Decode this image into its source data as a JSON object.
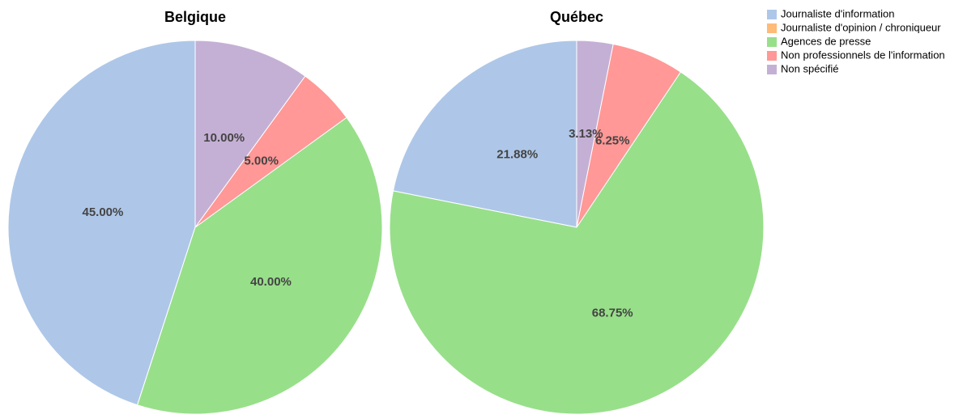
{
  "chart_data": [
    {
      "type": "pie",
      "title": "Belgique",
      "categories": [
        "Journaliste d'information",
        "Journaliste d'opinion / chroniqueur",
        "Agences de presse",
        "Non professionnels de l'information",
        "Non spécifié"
      ],
      "colors": [
        "#aec7e8",
        "#ffbb78",
        "#98df8a",
        "#ff9896",
        "#c5b0d5"
      ],
      "values": [
        45,
        0,
        40,
        5,
        10
      ],
      "value_labels": [
        "45.00%",
        null,
        "40.00%",
        "5.00%",
        "10.00%"
      ]
    },
    {
      "type": "pie",
      "title": "Québec",
      "values": [
        21.88,
        0,
        68.75,
        6.25,
        3.13
      ],
      "value_labels": [
        "21.88%",
        null,
        "68.75%",
        "6.25%",
        "3.13%"
      ]
    }
  ]
}
